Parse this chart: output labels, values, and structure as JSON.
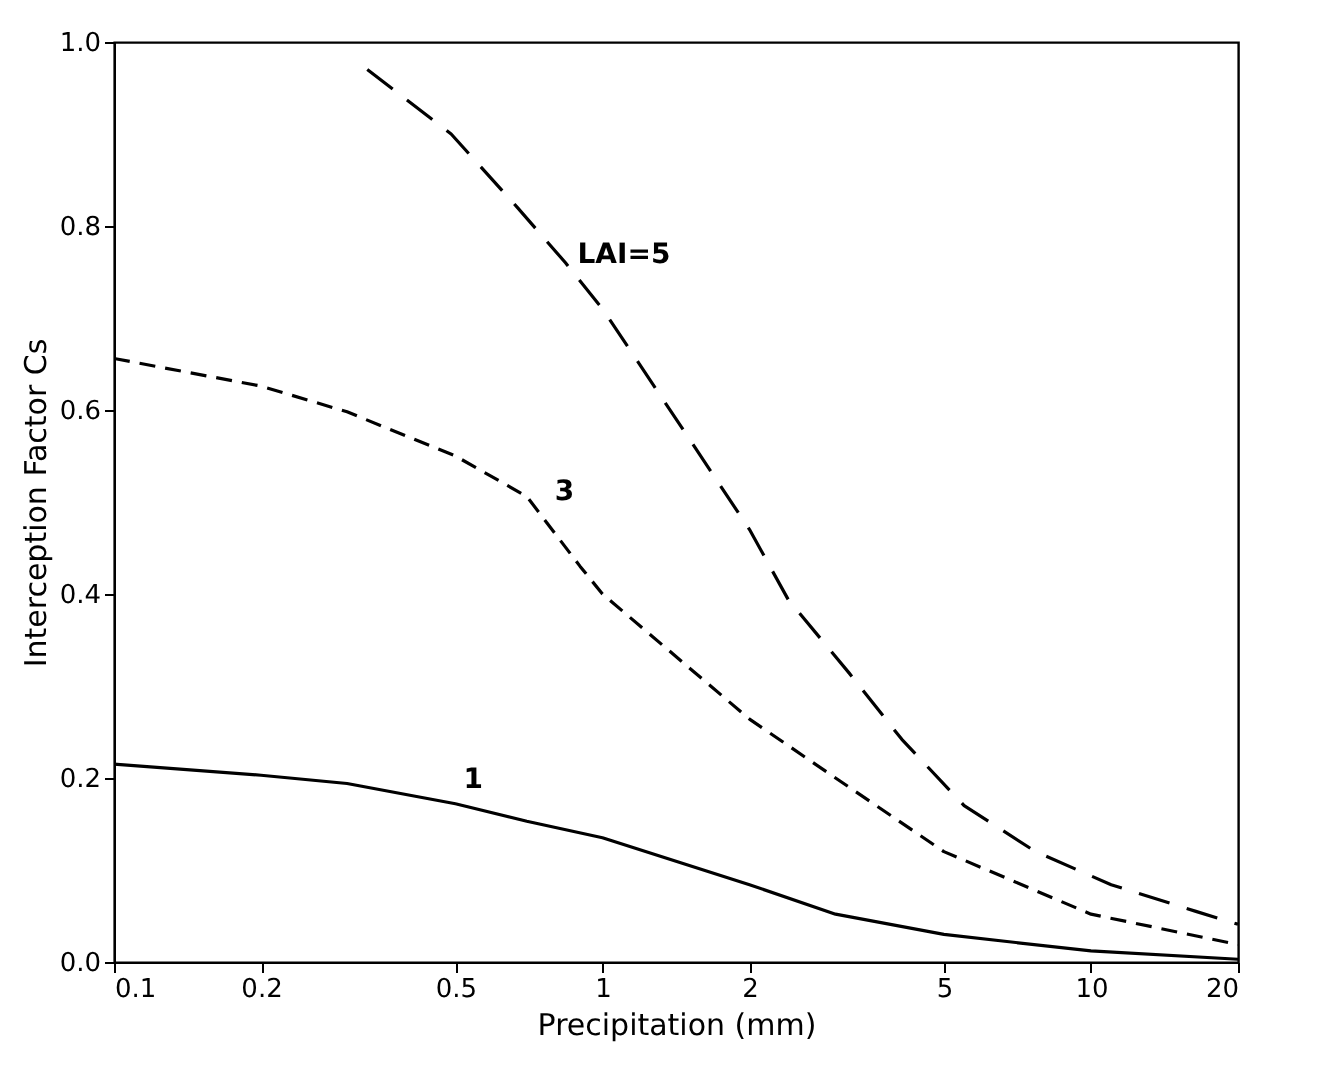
{
  "chart_data": {
    "type": "line",
    "xlabel": "Precipitation (mm)",
    "ylabel": "Interception Factor Cs",
    "log": "x",
    "xlim": [
      0.1,
      20
    ],
    "xticks": [
      0.1,
      0.2,
      0.5,
      1,
      2,
      5,
      10,
      20
    ],
    "ylim": [
      0,
      1.0
    ],
    "yticks": [
      {
        "value": 0,
        "label": "0.0"
      },
      0.2,
      0.4,
      0.6,
      0.8,
      {
        "value": 1,
        "label": "1.0"
      }
    ],
    "grid": false,
    "series": [
      {
        "name": "1",
        "color": "#000000",
        "line_style": "solid",
        "x": [
          0.1,
          0.2,
          0.3,
          0.5,
          0.7,
          1,
          2,
          3,
          5,
          10,
          20
        ],
        "values": [
          0.215,
          0.203,
          0.194,
          0.172,
          0.153,
          0.135,
          0.084,
          0.052,
          0.03,
          0.012,
          0.003
        ]
      },
      {
        "name": "3",
        "color": "#000000",
        "line_style": "dashed",
        "x": [
          0.1,
          0.2,
          0.3,
          0.5,
          0.7,
          0.9,
          1,
          2,
          3,
          5,
          10,
          20
        ],
        "values": [
          0.656,
          0.626,
          0.598,
          0.55,
          0.506,
          0.43,
          0.4,
          0.264,
          0.2,
          0.12,
          0.052,
          0.019
        ]
      },
      {
        "name": "LAI=5",
        "color": "#000000",
        "line_style": "dashed",
        "x": [
          0.33,
          0.49,
          0.67,
          0.84,
          1,
          1.5,
          2,
          2.4,
          3.2,
          4.1,
          5.5,
          7.7,
          11,
          16.4,
          20
        ],
        "values": [
          0.97,
          0.9,
          0.82,
          0.76,
          0.71,
          0.57,
          0.47,
          0.394,
          0.314,
          0.242,
          0.17,
          0.12,
          0.084,
          0.055,
          0.041
        ]
      }
    ]
  }
}
